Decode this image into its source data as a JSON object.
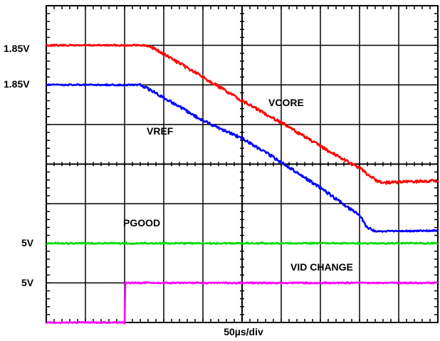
{
  "chart_data": {
    "type": "line",
    "title": "",
    "xlabel": "50µs/div",
    "x_range_us": [
      0,
      500
    ],
    "grid": {
      "major_divisions_x": 10,
      "major_divisions_y": 8
    },
    "trace_labels": {
      "vcore": "VCORE",
      "vref": "VREF",
      "pgood": "PGOOD",
      "vid_change": "VID CHANGE"
    },
    "level_labels": [
      "1.85V",
      "1.85V",
      "5V",
      "5V"
    ],
    "series": [
      {
        "key": "vcore",
        "name": "VCORE",
        "color": "#ff0000",
        "x_us": [
          0,
          125,
          135,
          200,
          250,
          300,
          350,
          400,
          420,
          430,
          500
        ],
        "y_div": [
          7.0,
          7.0,
          6.95,
          6.2,
          5.6,
          5.05,
          4.45,
          3.9,
          3.6,
          3.53,
          3.58
        ]
      },
      {
        "key": "vref",
        "name": "VREF",
        "color": "#0000ff",
        "x_us": [
          0,
          120,
          135,
          200,
          250,
          300,
          350,
          400,
          410,
          420,
          500
        ],
        "y_div": [
          6.0,
          6.0,
          5.85,
          5.1,
          4.65,
          4.05,
          3.4,
          2.7,
          2.4,
          2.3,
          2.32
        ]
      },
      {
        "key": "pgood",
        "name": "PGOOD",
        "color": "#00dd00",
        "x_us": [
          0,
          500
        ],
        "y_div": [
          2.0,
          2.0
        ]
      },
      {
        "key": "vid_change",
        "name": "VID CHANGE",
        "color": "#ff00ff",
        "x_us": [
          0,
          100,
          101,
          500
        ],
        "y_div": [
          0.0,
          0.0,
          1.0,
          1.0
        ]
      }
    ]
  }
}
